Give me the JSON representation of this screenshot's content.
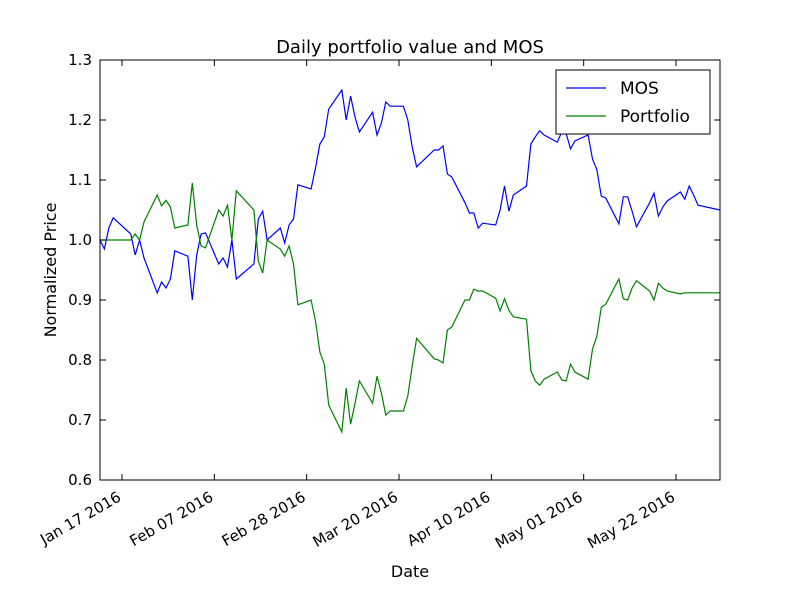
{
  "chart_data": {
    "type": "line",
    "title": "Daily portfolio value and MOS",
    "xlabel": "Date",
    "ylabel": "Normalized Price",
    "ylim": [
      0.6,
      1.3
    ],
    "xlim": [
      "2016-01-12",
      "2016-06-01"
    ],
    "yticks": [
      "0.6",
      "0.7",
      "0.8",
      "0.9",
      "1.0",
      "1.1",
      "1.2",
      "1.3"
    ],
    "xticks": [
      {
        "date": "2016-01-17",
        "label": "Jan 17 2016"
      },
      {
        "date": "2016-02-07",
        "label": "Feb 07 2016"
      },
      {
        "date": "2016-02-28",
        "label": "Feb 28 2016"
      },
      {
        "date": "2016-03-20",
        "label": "Mar 20 2016"
      },
      {
        "date": "2016-04-10",
        "label": "Apr 10 2016"
      },
      {
        "date": "2016-05-01",
        "label": "May 01 2016"
      },
      {
        "date": "2016-05-22",
        "label": "May 22 2016"
      }
    ],
    "grid": false,
    "legend": "top-right",
    "series": [
      {
        "name": "MOS",
        "color": "#0000ff",
        "x": [
          "2016-01-12",
          "2016-01-13",
          "2016-01-14",
          "2016-01-15",
          "2016-01-19",
          "2016-01-20",
          "2016-01-21",
          "2016-01-22",
          "2016-01-25",
          "2016-01-26",
          "2016-01-27",
          "2016-01-28",
          "2016-01-29",
          "2016-02-01",
          "2016-02-02",
          "2016-02-03",
          "2016-02-04",
          "2016-02-05",
          "2016-02-08",
          "2016-02-09",
          "2016-02-10",
          "2016-02-11",
          "2016-02-12",
          "2016-02-16",
          "2016-02-17",
          "2016-02-18",
          "2016-02-19",
          "2016-02-22",
          "2016-02-23",
          "2016-02-24",
          "2016-02-25",
          "2016-02-26",
          "2016-02-29",
          "2016-03-01",
          "2016-03-02",
          "2016-03-03",
          "2016-03-04",
          "2016-03-07",
          "2016-03-08",
          "2016-03-09",
          "2016-03-10",
          "2016-03-11",
          "2016-03-14",
          "2016-03-15",
          "2016-03-16",
          "2016-03-17",
          "2016-03-18",
          "2016-03-21",
          "2016-03-22",
          "2016-03-23",
          "2016-03-24",
          "2016-03-28",
          "2016-03-29",
          "2016-03-30",
          "2016-03-31",
          "2016-04-01",
          "2016-04-04",
          "2016-04-05",
          "2016-04-06",
          "2016-04-07",
          "2016-04-08",
          "2016-04-11",
          "2016-04-12",
          "2016-04-13",
          "2016-04-14",
          "2016-04-15",
          "2016-04-18",
          "2016-04-19",
          "2016-04-20",
          "2016-04-21",
          "2016-04-22",
          "2016-04-25",
          "2016-04-26",
          "2016-04-27",
          "2016-04-28",
          "2016-04-29",
          "2016-05-02",
          "2016-05-03",
          "2016-05-04",
          "2016-05-05",
          "2016-05-06",
          "2016-05-09",
          "2016-05-10",
          "2016-05-11",
          "2016-05-12",
          "2016-05-13",
          "2016-05-16",
          "2016-05-17",
          "2016-05-18",
          "2016-05-19",
          "2016-05-20",
          "2016-05-23",
          "2016-05-24",
          "2016-05-25",
          "2016-05-26",
          "2016-05-27",
          "2016-06-01"
        ],
        "values": [
          1.0,
          0.985,
          1.02,
          1.037,
          1.01,
          0.975,
          1.0,
          0.97,
          0.912,
          0.93,
          0.92,
          0.935,
          0.982,
          0.973,
          0.9,
          0.975,
          1.01,
          1.012,
          0.96,
          0.97,
          0.955,
          1.0,
          0.935,
          0.96,
          1.035,
          1.048,
          1.0,
          1.02,
          0.995,
          1.025,
          1.035,
          1.092,
          1.085,
          1.12,
          1.16,
          1.172,
          1.218,
          1.25,
          1.2,
          1.24,
          1.205,
          1.18,
          1.213,
          1.175,
          1.195,
          1.23,
          1.223,
          1.223,
          1.2,
          1.155,
          1.122,
          1.15,
          1.15,
          1.157,
          1.11,
          1.105,
          1.062,
          1.045,
          1.045,
          1.02,
          1.028,
          1.025,
          1.05,
          1.09,
          1.048,
          1.075,
          1.09,
          1.16,
          1.172,
          1.182,
          1.175,
          1.163,
          1.18,
          1.178,
          1.152,
          1.165,
          1.175,
          1.135,
          1.117,
          1.073,
          1.07,
          1.027,
          1.072,
          1.072,
          1.048,
          1.022,
          1.062,
          1.078,
          1.04,
          1.055,
          1.065,
          1.08,
          1.068,
          1.09,
          1.075,
          1.058,
          1.05
        ]
      },
      {
        "name": "Portfolio",
        "color": "#008000",
        "x": [
          "2016-01-12",
          "2016-01-13",
          "2016-01-14",
          "2016-01-15",
          "2016-01-19",
          "2016-01-20",
          "2016-01-21",
          "2016-01-22",
          "2016-01-25",
          "2016-01-26",
          "2016-01-27",
          "2016-01-28",
          "2016-01-29",
          "2016-02-01",
          "2016-02-02",
          "2016-02-03",
          "2016-02-04",
          "2016-02-05",
          "2016-02-08",
          "2016-02-09",
          "2016-02-10",
          "2016-02-11",
          "2016-02-12",
          "2016-02-16",
          "2016-02-17",
          "2016-02-18",
          "2016-02-19",
          "2016-02-22",
          "2016-02-23",
          "2016-02-24",
          "2016-02-25",
          "2016-02-26",
          "2016-02-29",
          "2016-03-01",
          "2016-03-02",
          "2016-03-03",
          "2016-03-04",
          "2016-03-07",
          "2016-03-08",
          "2016-03-09",
          "2016-03-10",
          "2016-03-11",
          "2016-03-14",
          "2016-03-15",
          "2016-03-16",
          "2016-03-17",
          "2016-03-18",
          "2016-03-21",
          "2016-03-22",
          "2016-03-23",
          "2016-03-24",
          "2016-03-28",
          "2016-03-29",
          "2016-03-30",
          "2016-03-31",
          "2016-04-01",
          "2016-04-04",
          "2016-04-05",
          "2016-04-06",
          "2016-04-07",
          "2016-04-08",
          "2016-04-11",
          "2016-04-12",
          "2016-04-13",
          "2016-04-14",
          "2016-04-15",
          "2016-04-18",
          "2016-04-19",
          "2016-04-20",
          "2016-04-21",
          "2016-04-22",
          "2016-04-25",
          "2016-04-26",
          "2016-04-27",
          "2016-04-28",
          "2016-04-29",
          "2016-05-02",
          "2016-05-03",
          "2016-05-04",
          "2016-05-05",
          "2016-05-06",
          "2016-05-09",
          "2016-05-10",
          "2016-05-11",
          "2016-05-12",
          "2016-05-13",
          "2016-05-16",
          "2016-05-17",
          "2016-05-18",
          "2016-05-19",
          "2016-05-20",
          "2016-05-23",
          "2016-05-24",
          "2016-05-25",
          "2016-05-26",
          "2016-05-27",
          "2016-06-01"
        ],
        "values": [
          1.0,
          1.0,
          1.0,
          1.0,
          1.0,
          1.01,
          1.0,
          1.03,
          1.075,
          1.057,
          1.066,
          1.055,
          1.02,
          1.025,
          1.095,
          1.025,
          0.99,
          0.987,
          1.05,
          1.04,
          1.058,
          1.0,
          1.082,
          1.05,
          0.965,
          0.945,
          1.0,
          0.985,
          0.973,
          0.99,
          0.96,
          0.892,
          0.9,
          0.865,
          0.813,
          0.793,
          0.725,
          0.68,
          0.753,
          0.693,
          0.728,
          0.765,
          0.728,
          0.773,
          0.745,
          0.708,
          0.715,
          0.715,
          0.74,
          0.79,
          0.836,
          0.802,
          0.8,
          0.795,
          0.85,
          0.855,
          0.9,
          0.9,
          0.918,
          0.915,
          0.915,
          0.903,
          0.882,
          0.902,
          0.883,
          0.872,
          0.868,
          0.782,
          0.765,
          0.758,
          0.768,
          0.78,
          0.767,
          0.765,
          0.793,
          0.78,
          0.768,
          0.818,
          0.84,
          0.888,
          0.893,
          0.935,
          0.902,
          0.9,
          0.92,
          0.932,
          0.915,
          0.9,
          0.928,
          0.92,
          0.915,
          0.91,
          0.912,
          0.912,
          0.912,
          0.912,
          0.912
        ]
      }
    ]
  }
}
